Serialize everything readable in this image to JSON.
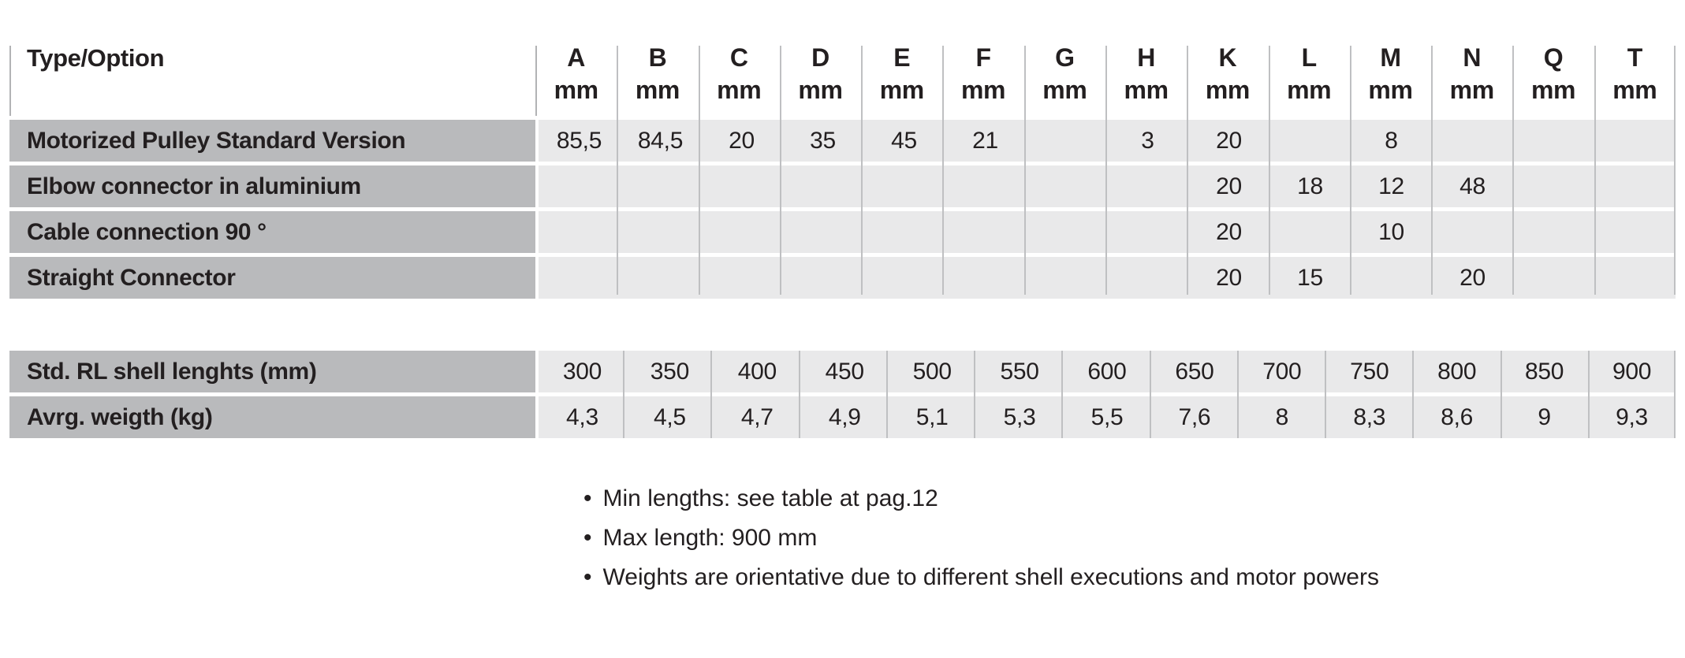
{
  "dimensions_table": {
    "header_label": "Type/Option",
    "unit": "mm",
    "columns": [
      "A",
      "B",
      "C",
      "D",
      "E",
      "F",
      "G",
      "H",
      "K",
      "L",
      "M",
      "N",
      "Q",
      "T"
    ],
    "rows": [
      {
        "label": "Motorized Pulley Standard Version",
        "values": [
          "85,5",
          "84,5",
          "20",
          "35",
          "45",
          "21",
          "",
          "3",
          "20",
          "",
          "8",
          "",
          "",
          ""
        ]
      },
      {
        "label": "Elbow connector in aluminium",
        "values": [
          "",
          "",
          "",
          "",
          "",
          "",
          "",
          "",
          "20",
          "18",
          "12",
          "48",
          "",
          ""
        ]
      },
      {
        "label": "Cable connection 90 °",
        "values": [
          "",
          "",
          "",
          "",
          "",
          "",
          "",
          "",
          "20",
          "",
          "10",
          "",
          "",
          ""
        ]
      },
      {
        "label": "Straight Connector",
        "values": [
          "",
          "",
          "",
          "",
          "",
          "",
          "",
          "",
          "20",
          "15",
          "",
          "20",
          "",
          ""
        ]
      }
    ]
  },
  "shell_table": {
    "rows": [
      {
        "label": "Std. RL shell lenghts (mm)",
        "values": [
          "300",
          "350",
          "400",
          "450",
          "500",
          "550",
          "600",
          "650",
          "700",
          "750",
          "800",
          "850",
          "900"
        ]
      },
      {
        "label": "Avrg. weigth (kg)",
        "values": [
          "4,3",
          "4,5",
          "4,7",
          "4,9",
          "5,1",
          "5,3",
          "5,5",
          "7,6",
          "8",
          "8,3",
          "8,6",
          "9",
          "9,3"
        ]
      }
    ]
  },
  "notes": [
    "Min lengths: see table at pag.12",
    "Max length: 900 mm",
    "Weights are orientative due to different shell executions and motor powers"
  ],
  "bullet_glyph": "•",
  "colors": {
    "label_bg": "#b9babc",
    "cell_bg": "#e9e9ea",
    "separator_line": "#bfc0c2",
    "header_line": "#b2b3b5",
    "text": "#231f20",
    "background": "#ffffff"
  }
}
